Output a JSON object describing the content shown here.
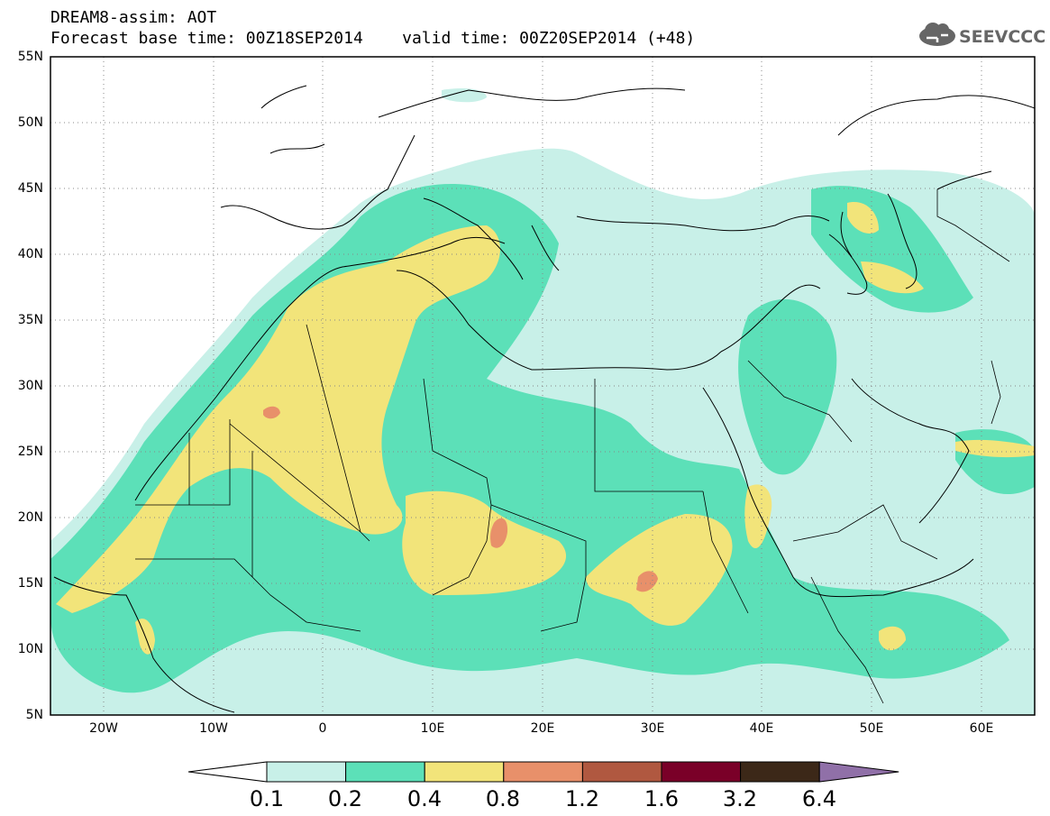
{
  "header": {
    "line1": "DREAM8-assim: AOT",
    "line2": "Forecast base time: 00Z18SEP2014    valid time: 00Z20SEP2014 (+48)"
  },
  "logo": {
    "text": "SEEVCCC",
    "icon": "cloud-icon"
  },
  "axes": {
    "lat_labels": [
      "55N",
      "50N",
      "45N",
      "40N",
      "35N",
      "30N",
      "25N",
      "20N",
      "15N",
      "10N",
      "5N"
    ],
    "lon_labels": [
      "20W",
      "10W",
      "0",
      "10E",
      "20E",
      "30E",
      "40E",
      "50E",
      "60E"
    ]
  },
  "colorbar": {
    "labels": [
      "0.1",
      "0.2",
      "0.4",
      "0.8",
      "1.2",
      "1.6",
      "3.2",
      "6.4"
    ],
    "colors": [
      "#ffffff",
      "#c8f0e8",
      "#5ce0b8",
      "#f2e47a",
      "#e8906a",
      "#b05840",
      "#7a0028",
      "#3c2818",
      "#9070a8"
    ]
  },
  "field_colors": {
    "c1": "#c8f0e8",
    "c2": "#5ce0b8",
    "c3": "#f2e47a",
    "c4": "#e8906a"
  }
}
